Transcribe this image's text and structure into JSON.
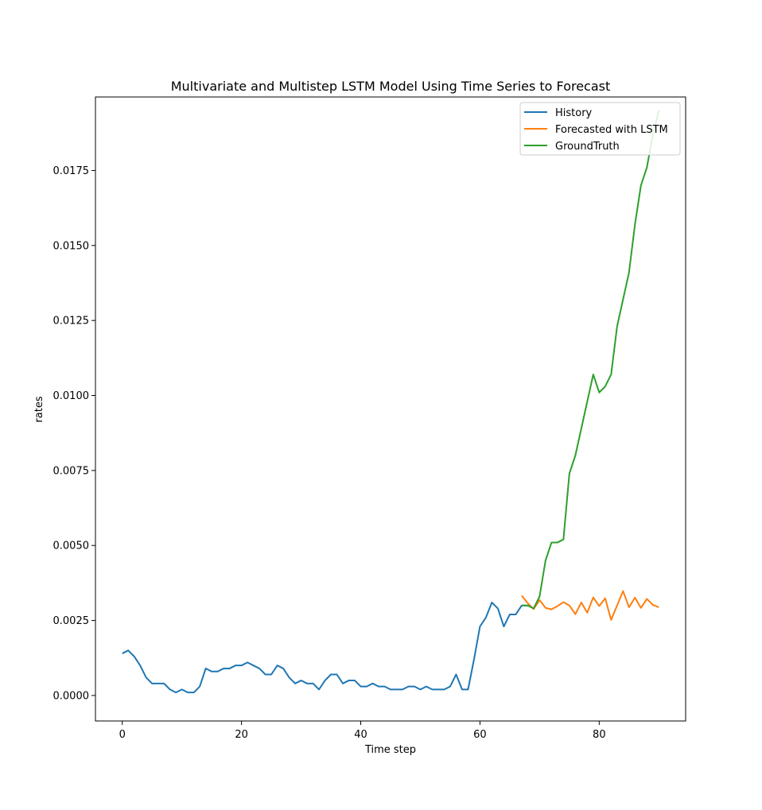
{
  "chart_data": {
    "type": "line",
    "title": "Multivariate and Multistep LSTM Model Using Time Series to Forecast",
    "xlabel": "Time step",
    "ylabel": "rates",
    "xlim": [
      -4.5,
      94.5
    ],
    "ylim": [
      -0.00085,
      0.01995
    ],
    "x_ticks": [
      0,
      20,
      40,
      60,
      80
    ],
    "x_tick_labels": [
      "0",
      "20",
      "40",
      "60",
      "80"
    ],
    "y_ticks": [
      0.0,
      0.0025,
      0.005,
      0.0075,
      0.01,
      0.0125,
      0.015,
      0.0175
    ],
    "y_tick_labels": [
      "0.0000",
      "0.0025",
      "0.0050",
      "0.0075",
      "0.0100",
      "0.0125",
      "0.0150",
      "0.0175"
    ],
    "grid": false,
    "legend_position": "top-right",
    "series": [
      {
        "name": "History",
        "color": "#1f77b4",
        "x": [
          0,
          1,
          2,
          3,
          4,
          5,
          6,
          7,
          8,
          9,
          10,
          11,
          12,
          13,
          14,
          15,
          16,
          17,
          18,
          19,
          20,
          21,
          22,
          23,
          24,
          25,
          26,
          27,
          28,
          29,
          30,
          31,
          32,
          33,
          34,
          35,
          36,
          37,
          38,
          39,
          40,
          41,
          42,
          43,
          44,
          45,
          46,
          47,
          48,
          49,
          50,
          51,
          52,
          53,
          54,
          55,
          56,
          57,
          58,
          59,
          60,
          61,
          62,
          63,
          64,
          65,
          66,
          67,
          68
        ],
        "y": [
          0.0014,
          0.0015,
          0.0013,
          0.001,
          0.0006,
          0.0004,
          0.0004,
          0.0004,
          0.0002,
          0.0001,
          0.0002,
          0.0001,
          0.0001,
          0.0003,
          0.0009,
          0.0008,
          0.0008,
          0.0009,
          0.0009,
          0.001,
          0.001,
          0.0011,
          0.001,
          0.0009,
          0.0007,
          0.0007,
          0.001,
          0.0009,
          0.0006,
          0.0004,
          0.0005,
          0.0004,
          0.0004,
          0.0002,
          0.0005,
          0.0007,
          0.0007,
          0.0004,
          0.0005,
          0.0005,
          0.0003,
          0.0003,
          0.0004,
          0.0003,
          0.0003,
          0.0002,
          0.0002,
          0.0002,
          0.0003,
          0.0003,
          0.0002,
          0.0003,
          0.0002,
          0.0002,
          0.0002,
          0.0003,
          0.0007,
          0.0002,
          0.0002,
          0.0012,
          0.0023,
          0.0026,
          0.0031,
          0.0029,
          0.0023,
          0.0027,
          0.0027,
          0.003,
          0.003
        ]
      },
      {
        "name": "Forecasted with LSTM",
        "color": "#ff7f0e",
        "x": [
          67,
          68,
          69,
          70,
          71,
          72,
          73,
          74,
          75,
          76,
          77,
          78,
          79,
          80,
          81,
          82,
          83,
          84,
          85,
          86,
          87,
          88,
          89,
          90
        ],
        "y": [
          0.00333,
          0.00308,
          0.00288,
          0.00318,
          0.00292,
          0.00287,
          0.00298,
          0.00311,
          0.003,
          0.00271,
          0.0031,
          0.00276,
          0.00327,
          0.00298,
          0.00324,
          0.00252,
          0.003,
          0.00348,
          0.00294,
          0.00326,
          0.00292,
          0.00322,
          0.00302,
          0.00294
        ]
      },
      {
        "name": "GroundTruth",
        "color": "#2ca02c",
        "x": [
          67,
          68,
          69,
          70,
          71,
          72,
          73,
          74,
          75,
          76,
          77,
          78,
          79,
          80,
          81,
          82,
          83,
          84,
          85,
          86,
          87,
          88,
          89,
          90
        ],
        "y": [
          0.003,
          0.003,
          0.0029,
          0.0033,
          0.0045,
          0.0051,
          0.0051,
          0.0052,
          0.0074,
          0.008,
          0.0089,
          0.0098,
          0.0107,
          0.0101,
          0.0103,
          0.0107,
          0.0123,
          0.0132,
          0.0141,
          0.0157,
          0.017,
          0.0176,
          0.0187,
          0.0195
        ]
      }
    ]
  }
}
